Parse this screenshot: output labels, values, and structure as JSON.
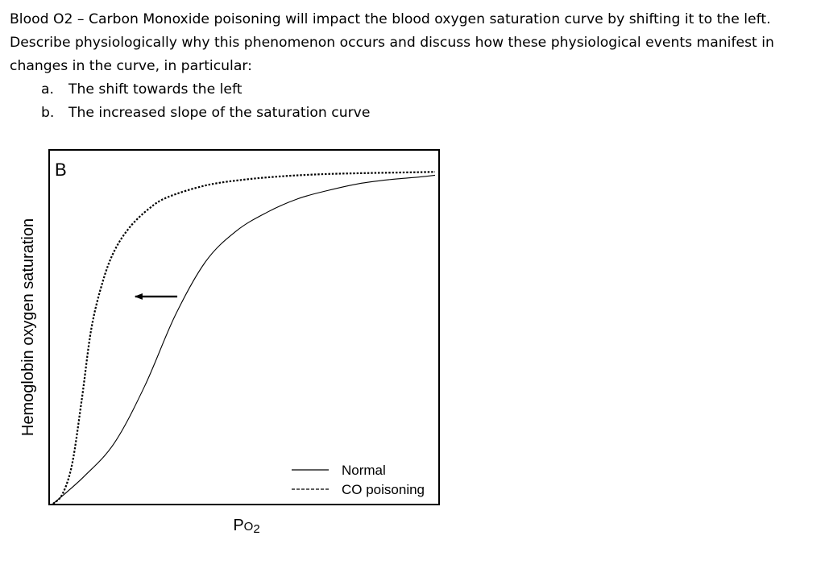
{
  "question": {
    "intro": "Blood O2 – Carbon Monoxide poisoning will impact the blood oxygen saturation curve by shifting it to the left. Describe physiologically why this phenomenon occurs and discuss how these physiological events manifest in changes in the curve, in particular:",
    "items": [
      {
        "marker": "a.",
        "text": "The shift towards the left"
      },
      {
        "marker": "b.",
        "text": "The increased slope of the saturation curve"
      }
    ]
  },
  "chart_data": {
    "type": "line",
    "panel_label": "B",
    "xlabel": "Po2",
    "ylabel": "Hemoglobin oxygen saturation",
    "xlim": [
      0,
      1
    ],
    "ylim": [
      0,
      1
    ],
    "x_ticks_shown": false,
    "y_ticks_shown": false,
    "grid": false,
    "legend_position": "bottom-right",
    "series": [
      {
        "name": "Normal",
        "line_style": "solid",
        "color": "#000000",
        "x": [
          0.0,
          0.08,
          0.16,
          0.24,
          0.32,
          0.4,
          0.48,
          0.56,
          0.64,
          0.72,
          0.8,
          0.88,
          0.96,
          1.0
        ],
        "y": [
          0.0,
          0.08,
          0.18,
          0.35,
          0.56,
          0.72,
          0.81,
          0.865,
          0.905,
          0.93,
          0.95,
          0.962,
          0.97,
          0.975
        ]
      },
      {
        "name": "CO poisoning",
        "line_style": "dashed",
        "color": "#000000",
        "x": [
          0.0,
          0.025,
          0.05,
          0.075,
          0.1,
          0.13,
          0.16,
          0.2,
          0.25,
          0.3,
          0.4,
          0.5,
          0.6,
          0.7,
          0.8,
          0.9,
          1.0
        ],
        "y": [
          0.0,
          0.03,
          0.12,
          0.31,
          0.52,
          0.66,
          0.75,
          0.82,
          0.875,
          0.91,
          0.945,
          0.962,
          0.972,
          0.978,
          0.981,
          0.983,
          0.985
        ]
      }
    ],
    "annotations": [
      {
        "type": "arrow",
        "from": {
          "x": 0.325,
          "y": 0.615
        },
        "to": {
          "x": 0.215,
          "y": 0.615
        }
      }
    ]
  }
}
